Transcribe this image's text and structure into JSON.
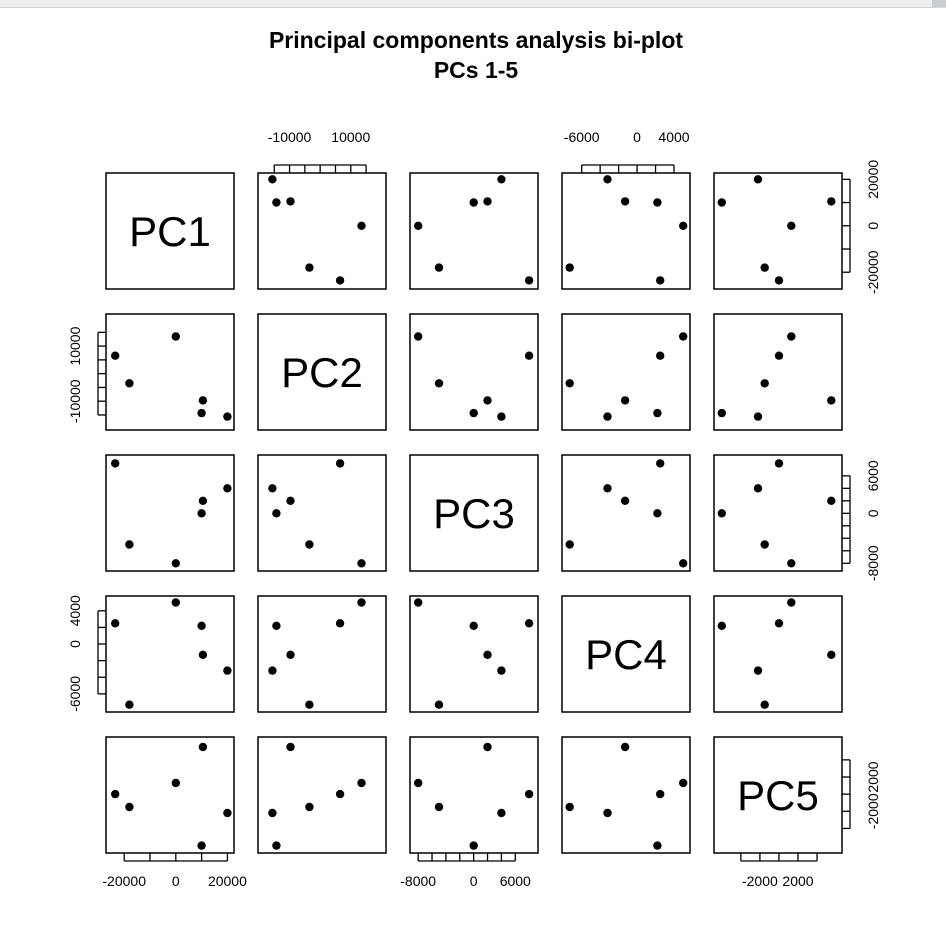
{
  "chart_data": {
    "type": "scatter",
    "title": "Principal components analysis bi-plot",
    "subtitle": "PCs 1-5",
    "variables": [
      "PC1",
      "PC2",
      "PC3",
      "PC4",
      "PC5"
    ],
    "observations": [
      {
        "PC1": -23500,
        "PC2": 6500,
        "PC3": 8000,
        "PC4": 2500,
        "PC5": 0
      },
      {
        "PC1": -18000,
        "PC2": -3500,
        "PC3": -5000,
        "PC4": -7300,
        "PC5": -1500
      },
      {
        "PC1": 0,
        "PC2": 13500,
        "PC3": -8000,
        "PC4": 5000,
        "PC5": 1300
      },
      {
        "PC1": 10500,
        "PC2": -9700,
        "PC3": 2000,
        "PC4": -1300,
        "PC5": 5500
      },
      {
        "PC1": 10000,
        "PC2": -14300,
        "PC3": 0,
        "PC4": 2200,
        "PC5": -6000
      },
      {
        "PC1": 20000,
        "PC2": -15600,
        "PC3": 4000,
        "PC4": -3200,
        "PC5": -2200
      }
    ],
    "ranges": {
      "PC1": [
        -25500,
        21000
      ],
      "PC2": [
        -19000,
        20200
      ],
      "PC3": [
        -8600,
        8700
      ],
      "PC4": [
        -7700,
        5300
      ],
      "PC5": [
        -6400,
        6200
      ]
    },
    "axis_ticks": {
      "PC1": {
        "labels": [
          -20000,
          0,
          20000
        ],
        "minor": [
          -20000,
          -10000,
          0,
          10000,
          20000
        ]
      },
      "PC2": {
        "labels": [
          -10000,
          10000
        ],
        "minor": [
          -15000,
          -10000,
          -5000,
          0,
          5000,
          10000,
          15000
        ]
      },
      "PC3": {
        "labels": [
          -8000,
          0,
          6000
        ],
        "minor": [
          -8000,
          -6000,
          -4000,
          -2000,
          0,
          2000,
          4000,
          6000
        ]
      },
      "PC4": {
        "labels": [
          -6000,
          0,
          4000
        ],
        "minor": [
          -6000,
          -4000,
          -2000,
          0,
          2000,
          4000
        ]
      },
      "PC5": {
        "labels": [
          -2000,
          2000
        ],
        "minor": [
          -4000,
          -2000,
          0,
          2000,
          4000
        ]
      }
    },
    "tick_sides": {
      "top": [
        "PC2",
        "PC4"
      ],
      "bottom": [
        "PC1",
        "PC3",
        "PC5"
      ],
      "left": [
        "PC2",
        "PC4"
      ],
      "right": [
        "PC1",
        "PC3",
        "PC5"
      ]
    },
    "grid": false,
    "legend": "none"
  }
}
